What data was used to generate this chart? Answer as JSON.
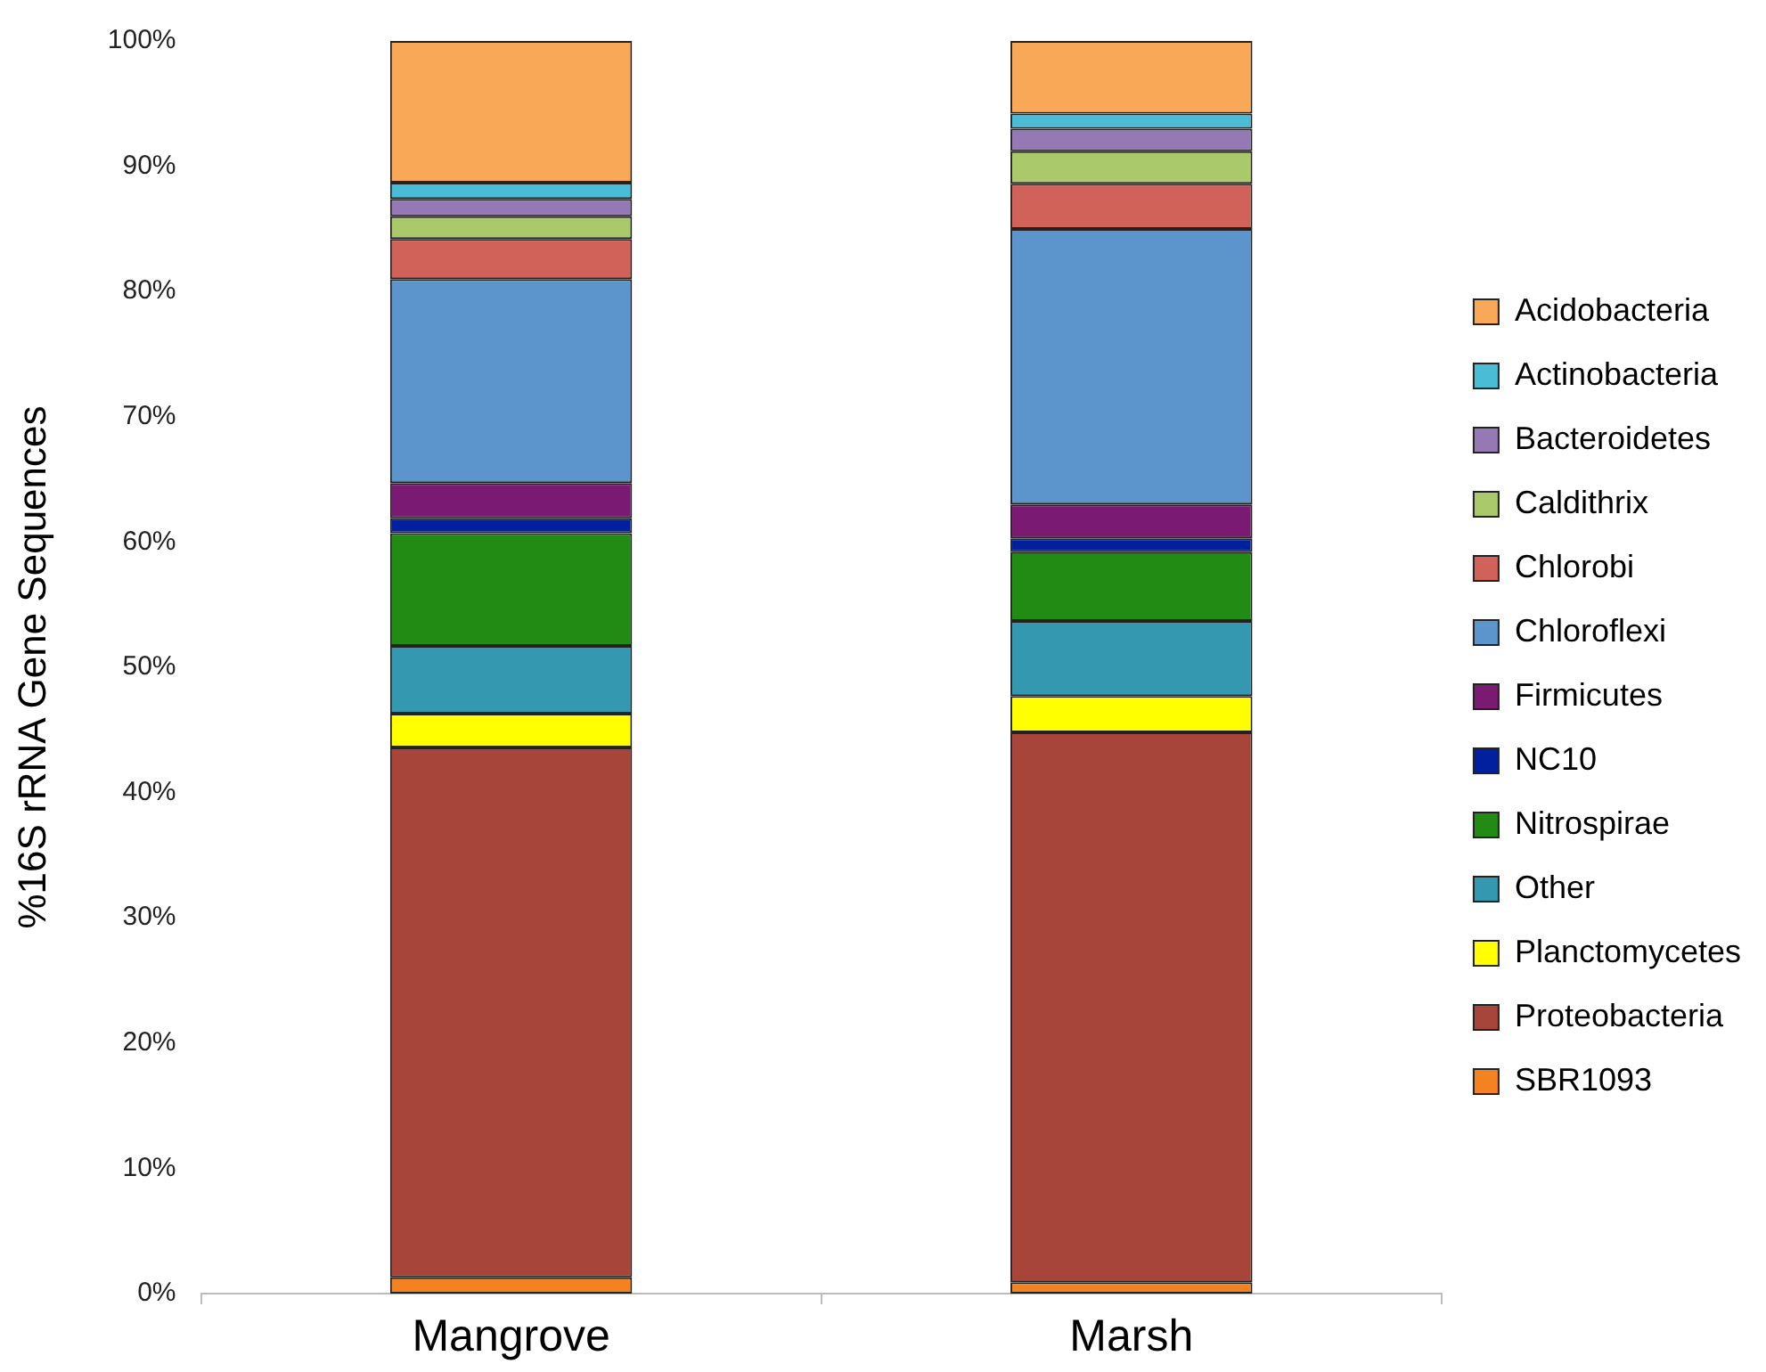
{
  "chart_data": {
    "type": "bar",
    "stacked": true,
    "ylabel": "%16S rRNA Gene Sequences",
    "categories": [
      "Mangrove",
      "Marsh"
    ],
    "ylim": [
      0,
      100
    ],
    "yticks": [
      {
        "value": 0,
        "label": "0%"
      },
      {
        "value": 10,
        "label": "10%"
      },
      {
        "value": 20,
        "label": "20%"
      },
      {
        "value": 30,
        "label": "30%"
      },
      {
        "value": 40,
        "label": "40%"
      },
      {
        "value": 50,
        "label": "50%"
      },
      {
        "value": 60,
        "label": "60%"
      },
      {
        "value": 70,
        "label": "70%"
      },
      {
        "value": 80,
        "label": "80%"
      },
      {
        "value": 90,
        "label": "90%"
      },
      {
        "value": 100,
        "label": "100%"
      }
    ],
    "grid": false,
    "legend": "right",
    "series": [
      {
        "name": "SBR1093",
        "color": "#f58220",
        "values": [
          1.3,
          0.9
        ]
      },
      {
        "name": "Proteobacteria",
        "color": "#a8453b",
        "values": [
          42.3,
          43.9
        ]
      },
      {
        "name": "Planctomycetes",
        "color": "#ffff00",
        "values": [
          2.7,
          2.9
        ]
      },
      {
        "name": "Other",
        "color": "#3498b0",
        "values": [
          5.4,
          6.0
        ]
      },
      {
        "name": "Nitrospirae",
        "color": "#228b14",
        "values": [
          9.0,
          5.5
        ]
      },
      {
        "name": "NC10",
        "color": "#0020a0",
        "values": [
          1.2,
          1.1
        ]
      },
      {
        "name": "Firmicutes",
        "color": "#7a1a72",
        "values": [
          2.8,
          2.7
        ]
      },
      {
        "name": "Chloroflexi",
        "color": "#5b95cc",
        "values": [
          16.3,
          22.0
        ]
      },
      {
        "name": "Chlorobi",
        "color": "#d0625a",
        "values": [
          3.2,
          3.6
        ]
      },
      {
        "name": "Caldithrix",
        "color": "#a9c96b",
        "values": [
          1.8,
          2.6
        ]
      },
      {
        "name": "Bacteroidetes",
        "color": "#9479b5",
        "values": [
          1.4,
          1.8
        ]
      },
      {
        "name": "Actinobacteria",
        "color": "#4bbcd6",
        "values": [
          1.3,
          1.2
        ]
      },
      {
        "name": "Acidobacteria",
        "color": "#f9a857",
        "values": [
          11.3,
          5.8
        ]
      }
    ]
  }
}
